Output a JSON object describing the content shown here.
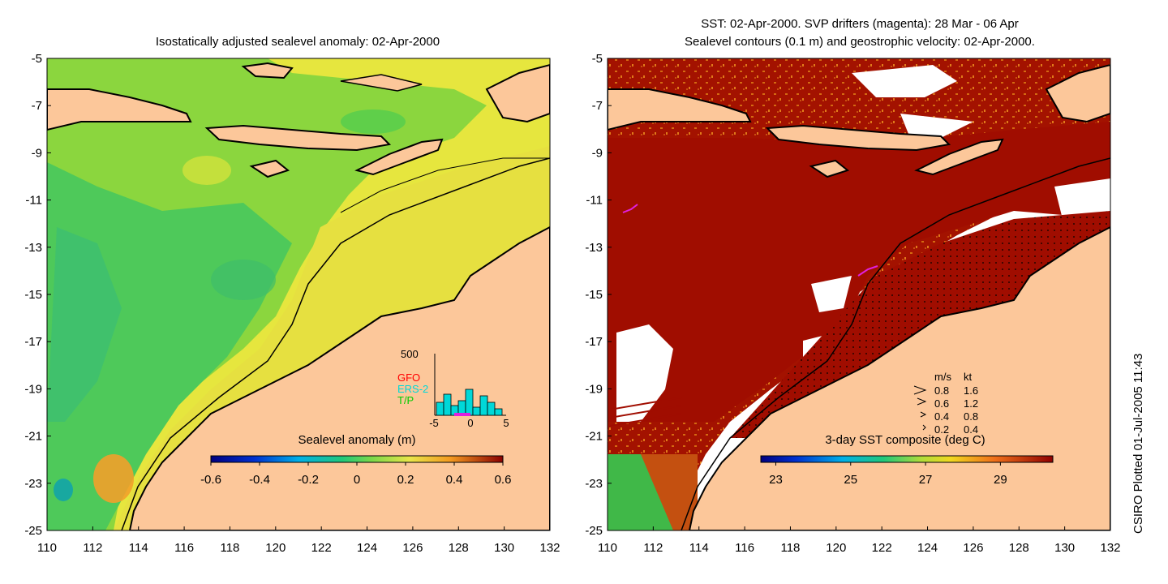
{
  "left_panel": {
    "title": "Isostatically adjusted sealevel anomaly: 02-Apr-2000",
    "colorbar": {
      "title": "Sealevel anomaly (m)",
      "ticks": [
        "-0.6",
        "-0.4",
        "-0.2",
        "0",
        "0.2",
        "0.4",
        "0.6"
      ]
    },
    "histogram": {
      "ymax_label": "500",
      "legend": [
        {
          "name": "GFO",
          "color": "#ff0000"
        },
        {
          "name": "ERS-2",
          "color": "#00d8d8"
        },
        {
          "name": "T/P",
          "color": "#00cc00"
        }
      ],
      "x_ticks": [
        "-5",
        "0",
        "5"
      ]
    }
  },
  "right_panel": {
    "title_line1": "SST: 02-Apr-2000. SVP drifters (magenta): 28 Mar - 06 Apr",
    "title_line2": "Sealevel contours (0.1 m) and geostrophic velocity: 02-Apr-2000.",
    "colorbar": {
      "title": "3-day SST composite (deg C)",
      "ticks": [
        "23",
        "25",
        "27",
        "29"
      ]
    },
    "velocity_legend": {
      "header_ms": "m/s",
      "header_kt": "kt",
      "rows": [
        {
          "ms": "0.8",
          "kt": "1.6"
        },
        {
          "ms": "0.6",
          "kt": "1.2"
        },
        {
          "ms": "0.4",
          "kt": "0.8"
        },
        {
          "ms": "0.2",
          "kt": "0.4"
        }
      ]
    }
  },
  "axes": {
    "lat_labels": [
      "-5",
      "-7",
      "-9",
      "-11",
      "-13",
      "-15",
      "-17",
      "-19",
      "-21",
      "-23",
      "-25"
    ],
    "lon_labels": [
      "110",
      "112",
      "114",
      "116",
      "118",
      "120",
      "122",
      "124",
      "126",
      "128",
      "130",
      "132"
    ]
  },
  "footer": {
    "credit": "CSIRO Plotted 01-Jul-2005 11:43"
  },
  "colors": {
    "land": "#fcc79a",
    "sst_dark": "#a00d00",
    "ssh_green": "#7ad84a",
    "ssh_yellow": "#e8e64a"
  }
}
